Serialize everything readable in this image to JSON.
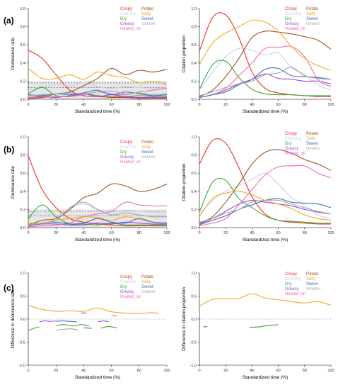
{
  "figure": {
    "panel_labels": [
      "(a)",
      "(b)",
      "(c)"
    ]
  },
  "legend_attributes": [
    {
      "name": "Crispy",
      "color": "#e8312a"
    },
    {
      "name": "Crunchy",
      "color": "#c6d2ea"
    },
    {
      "name": "Dry",
      "color": "#3aaa35"
    },
    {
      "name": "Greasy",
      "color": "#9b4fd6"
    },
    {
      "name": "Heated_oil",
      "color": "#f06ab8"
    },
    {
      "name": "Potato",
      "color": "#9a5520"
    },
    {
      "name": "Salty",
      "color": "#f5a623"
    },
    {
      "name": "Sweet",
      "color": "#3f6fc0"
    },
    {
      "name": "Umami",
      "color": "#a6a6a6"
    }
  ],
  "chart_data": [
    {
      "id": "a-left",
      "type": "line",
      "xlabel": "Standardized time (%)",
      "ylabel": "Dominance rate",
      "xlim": [
        0,
        100
      ],
      "ylim": [
        0,
        1.0
      ],
      "xticks": [
        "0",
        "20",
        "40",
        "60",
        "80",
        "100"
      ],
      "yticks": [
        "0.0",
        "0.2",
        "0.4",
        "0.6",
        "0.8",
        "1.0"
      ],
      "significance_lines": [
        0.13,
        0.18
      ],
      "x": [
        0,
        10,
        20,
        30,
        40,
        50,
        60,
        70,
        80,
        90,
        100
      ],
      "series": [
        {
          "name": "Crispy",
          "values": [
            0.54,
            0.45,
            0.27,
            0.1,
            0.04,
            0.03,
            0.02,
            0.02,
            0.01,
            0.01,
            0.01
          ]
        },
        {
          "name": "Crunchy",
          "values": [
            0.1,
            0.14,
            0.16,
            0.15,
            0.18,
            0.14,
            0.12,
            0.14,
            0.13,
            0.12,
            0.12
          ]
        },
        {
          "name": "Dry",
          "values": [
            0.06,
            0.13,
            0.04,
            0.03,
            0.06,
            0.04,
            0.03,
            0.03,
            0.04,
            0.03,
            0.03
          ]
        },
        {
          "name": "Greasy",
          "values": [
            0.02,
            0.03,
            0.02,
            0.04,
            0.06,
            0.03,
            0.05,
            0.03,
            0.02,
            0.02,
            0.02
          ]
        },
        {
          "name": "Heated_oil",
          "values": [
            0.02,
            0.02,
            0.03,
            0.03,
            0.05,
            0.08,
            0.06,
            0.05,
            0.08,
            0.1,
            0.12
          ]
        },
        {
          "name": "Potato",
          "values": [
            0.01,
            0.02,
            0.06,
            0.08,
            0.15,
            0.23,
            0.34,
            0.27,
            0.32,
            0.3,
            0.33
          ]
        },
        {
          "name": "Salty",
          "values": [
            0.34,
            0.23,
            0.23,
            0.27,
            0.22,
            0.3,
            0.26,
            0.24,
            0.18,
            0.2,
            0.16
          ]
        },
        {
          "name": "Sweet",
          "values": [
            0.05,
            0.04,
            0.06,
            0.05,
            0.07,
            0.1,
            0.05,
            0.08,
            0.06,
            0.04,
            0.05
          ]
        },
        {
          "name": "Umami",
          "values": [
            0.04,
            0.05,
            0.06,
            0.07,
            0.06,
            0.08,
            0.09,
            0.06,
            0.07,
            0.05,
            0.06
          ]
        }
      ]
    },
    {
      "id": "a-right",
      "type": "line",
      "xlabel": "Standardized time (%)",
      "ylabel": "Citation proportion",
      "xlim": [
        0,
        100
      ],
      "ylim": [
        0,
        1.0
      ],
      "xticks": [
        "0",
        "20",
        "40",
        "60",
        "80",
        "100"
      ],
      "yticks": [
        "0.0",
        "0.2",
        "0.4",
        "0.6",
        "0.8",
        "1.0"
      ],
      "x": [
        0,
        10,
        20,
        30,
        40,
        50,
        60,
        70,
        80,
        90,
        100
      ],
      "series": [
        {
          "name": "Crispy",
          "values": [
            0.53,
            0.9,
            0.93,
            0.68,
            0.3,
            0.12,
            0.07,
            0.05,
            0.04,
            0.03,
            0.03
          ]
        },
        {
          "name": "Crunchy",
          "values": [
            0.1,
            0.3,
            0.47,
            0.56,
            0.54,
            0.49,
            0.51,
            0.35,
            0.27,
            0.16,
            0.1
          ]
        },
        {
          "name": "Dry",
          "values": [
            0.11,
            0.38,
            0.42,
            0.24,
            0.11,
            0.06,
            0.05,
            0.05,
            0.04,
            0.04,
            0.04
          ]
        },
        {
          "name": "Greasy",
          "values": [
            0.02,
            0.05,
            0.1,
            0.17,
            0.22,
            0.28,
            0.23,
            0.22,
            0.2,
            0.2,
            0.17
          ]
        },
        {
          "name": "Heated_oil",
          "values": [
            0.02,
            0.05,
            0.12,
            0.26,
            0.4,
            0.56,
            0.57,
            0.58,
            0.47,
            0.22,
            0.14
          ]
        },
        {
          "name": "Potato",
          "values": [
            0.03,
            0.1,
            0.25,
            0.45,
            0.68,
            0.75,
            0.74,
            0.72,
            0.69,
            0.65,
            0.55
          ]
        },
        {
          "name": "Salty",
          "values": [
            0.38,
            0.62,
            0.73,
            0.8,
            0.87,
            0.85,
            0.75,
            0.58,
            0.45,
            0.37,
            0.32
          ]
        },
        {
          "name": "Sweet",
          "values": [
            0.02,
            0.05,
            0.08,
            0.16,
            0.22,
            0.33,
            0.34,
            0.26,
            0.25,
            0.24,
            0.22
          ]
        },
        {
          "name": "Umami",
          "values": [
            0.04,
            0.08,
            0.13,
            0.17,
            0.2,
            0.27,
            0.29,
            0.35,
            0.26,
            0.23,
            0.22
          ]
        }
      ]
    },
    {
      "id": "b-left",
      "type": "line",
      "xlabel": "Standardized time (%)",
      "ylabel": "Dominance rate",
      "xlim": [
        0,
        100
      ],
      "ylim": [
        0,
        1.0
      ],
      "xticks": [
        "0",
        "20",
        "40",
        "60",
        "80",
        "100"
      ],
      "yticks": [
        "0.0",
        "0.2",
        "0.4",
        "0.6",
        "0.8",
        "1.0"
      ],
      "significance_lines": [
        0.13,
        0.18
      ],
      "x": [
        0,
        10,
        20,
        30,
        40,
        50,
        60,
        70,
        80,
        90,
        100
      ],
      "series": [
        {
          "name": "Crispy",
          "values": [
            0.79,
            0.42,
            0.22,
            0.1,
            0.06,
            0.04,
            0.03,
            0.02,
            0.02,
            0.02,
            0.02
          ]
        },
        {
          "name": "Crunchy",
          "values": [
            0.1,
            0.18,
            0.12,
            0.22,
            0.26,
            0.2,
            0.17,
            0.19,
            0.18,
            0.17,
            0.16
          ]
        },
        {
          "name": "Dry",
          "values": [
            0.1,
            0.25,
            0.12,
            0.04,
            0.04,
            0.03,
            0.05,
            0.03,
            0.03,
            0.03,
            0.03
          ]
        },
        {
          "name": "Greasy",
          "values": [
            0.02,
            0.04,
            0.04,
            0.03,
            0.03,
            0.05,
            0.04,
            0.06,
            0.05,
            0.04,
            0.04
          ]
        },
        {
          "name": "Heated_oil",
          "values": [
            0.01,
            0.02,
            0.03,
            0.05,
            0.12,
            0.15,
            0.18,
            0.28,
            0.25,
            0.24,
            0.24
          ]
        },
        {
          "name": "Potato",
          "values": [
            0.03,
            0.08,
            0.1,
            0.2,
            0.33,
            0.38,
            0.48,
            0.46,
            0.4,
            0.42,
            0.48
          ]
        },
        {
          "name": "Salty",
          "values": [
            0.05,
            0.05,
            0.08,
            0.1,
            0.12,
            0.11,
            0.08,
            0.12,
            0.09,
            0.06,
            0.05
          ]
        },
        {
          "name": "Sweet",
          "values": [
            0.03,
            0.05,
            0.06,
            0.04,
            0.05,
            0.1,
            0.06,
            0.05,
            0.1,
            0.06,
            0.05
          ]
        },
        {
          "name": "Umami",
          "values": [
            0.03,
            0.05,
            0.08,
            0.22,
            0.28,
            0.2,
            0.14,
            0.16,
            0.14,
            0.12,
            0.12
          ]
        }
      ]
    },
    {
      "id": "b-right",
      "type": "line",
      "xlabel": "Standardized time (%)",
      "ylabel": "Citation proportion",
      "xlim": [
        0,
        100
      ],
      "ylim": [
        0,
        1.0
      ],
      "xticks": [
        "0",
        "20",
        "40",
        "60",
        "80",
        "100"
      ],
      "yticks": [
        "0.0",
        "0.2",
        "0.4",
        "0.6",
        "0.8",
        "1.0"
      ],
      "x": [
        0,
        10,
        20,
        30,
        40,
        50,
        60,
        70,
        80,
        90,
        100
      ],
      "series": [
        {
          "name": "Crispy",
          "values": [
            0.7,
            0.96,
            0.93,
            0.66,
            0.34,
            0.15,
            0.08,
            0.06,
            0.05,
            0.04,
            0.04
          ]
        },
        {
          "name": "Crunchy",
          "values": [
            0.15,
            0.3,
            0.4,
            0.46,
            0.53,
            0.6,
            0.48,
            0.33,
            0.25,
            0.14,
            0.1
          ]
        },
        {
          "name": "Dry",
          "values": [
            0.17,
            0.5,
            0.52,
            0.32,
            0.22,
            0.13,
            0.08,
            0.07,
            0.06,
            0.05,
            0.05
          ]
        },
        {
          "name": "Greasy",
          "values": [
            0.04,
            0.1,
            0.18,
            0.26,
            0.3,
            0.28,
            0.26,
            0.24,
            0.2,
            0.17,
            0.15
          ]
        },
        {
          "name": "Heated_oil",
          "values": [
            0.02,
            0.05,
            0.1,
            0.25,
            0.42,
            0.58,
            0.67,
            0.68,
            0.68,
            0.6,
            0.55
          ]
        },
        {
          "name": "Potato",
          "values": [
            0.05,
            0.12,
            0.28,
            0.48,
            0.7,
            0.83,
            0.86,
            0.82,
            0.75,
            0.7,
            0.63
          ]
        },
        {
          "name": "Salty",
          "values": [
            0.12,
            0.32,
            0.38,
            0.4,
            0.36,
            0.3,
            0.26,
            0.21,
            0.14,
            0.1,
            0.08
          ]
        },
        {
          "name": "Sweet",
          "values": [
            0.03,
            0.08,
            0.13,
            0.2,
            0.25,
            0.3,
            0.32,
            0.28,
            0.27,
            0.26,
            0.22
          ]
        },
        {
          "name": "Umami",
          "values": [
            0.06,
            0.1,
            0.16,
            0.2,
            0.28,
            0.3,
            0.3,
            0.26,
            0.22,
            0.18,
            0.15
          ]
        }
      ]
    },
    {
      "id": "c-left",
      "type": "line",
      "xlabel": "Standardized time (%)",
      "ylabel": "Difference in dominance rate",
      "xlim": [
        0,
        100
      ],
      "ylim": [
        -1.0,
        1.0
      ],
      "xticks": [
        "0",
        "20",
        "40",
        "60",
        "80",
        "100"
      ],
      "yticks": [
        "-1.0",
        "-0.5",
        "0.0",
        "0.5",
        "1.0"
      ],
      "zero_line": 0,
      "series": [
        {
          "name": "Salty",
          "x": [
            0,
            10,
            20,
            30,
            40,
            50,
            60,
            70,
            80,
            90,
            94
          ],
          "values": [
            0.3,
            0.21,
            0.17,
            0.18,
            0.17,
            0.24,
            0.16,
            0.13,
            0.12,
            0.14,
            0.11
          ]
        },
        {
          "name": "Greasy",
          "x": [
            38,
            40,
            42
          ],
          "values": [
            0.12,
            0.14,
            0.12
          ]
        },
        {
          "name": "Heated_oil",
          "x": [
            60,
            62,
            64
          ],
          "values": [
            0.06,
            0.08,
            0.06
          ]
        },
        {
          "name": "Greasy",
          "x": [
            8,
            12,
            16,
            20
          ],
          "values": [
            -0.06,
            -0.04,
            -0.05,
            -0.04
          ]
        },
        {
          "name": "Sweet",
          "x": [
            20,
            25,
            30,
            35
          ],
          "values": [
            -0.05,
            -0.04,
            -0.05,
            -0.06
          ]
        },
        {
          "name": "Greasy",
          "x": [
            50,
            54,
            58
          ],
          "values": [
            -0.06,
            -0.04,
            -0.06
          ]
        },
        {
          "name": "Dry",
          "x": [
            0,
            4,
            8
          ],
          "values": [
            -0.25,
            -0.2,
            -0.17
          ]
        },
        {
          "name": "Dry",
          "x": [
            20,
            26,
            32,
            38,
            44
          ],
          "values": [
            -0.14,
            -0.12,
            -0.15,
            -0.12,
            -0.14
          ]
        },
        {
          "name": "Dry",
          "x": [
            52,
            58,
            64
          ],
          "values": [
            -0.2,
            -0.16,
            -0.19
          ]
        },
        {
          "name": "Umami",
          "x": [
            20,
            30,
            36
          ],
          "values": [
            -0.24,
            -0.21,
            -0.24
          ]
        },
        {
          "name": "Sweet",
          "x": [
            40,
            46
          ],
          "values": [
            -0.19,
            -0.2
          ]
        }
      ]
    },
    {
      "id": "c-right",
      "type": "line",
      "xlabel": "Standardized time (%)",
      "ylabel": "Difference in citation proportion",
      "xlim": [
        0,
        100
      ],
      "ylim": [
        -1.0,
        1.0
      ],
      "xticks": [
        "0",
        "20",
        "40",
        "60",
        "80",
        "100"
      ],
      "yticks": [
        "-1.0",
        "-0.5",
        "0.0",
        "0.5",
        "1.0"
      ],
      "zero_line": 0,
      "series": [
        {
          "name": "Salty",
          "x": [
            0,
            10,
            20,
            30,
            40,
            50,
            60,
            70,
            80,
            90,
            100
          ],
          "values": [
            0.28,
            0.43,
            0.44,
            0.45,
            0.55,
            0.46,
            0.42,
            0.38,
            0.35,
            0.38,
            0.3
          ]
        },
        {
          "name": "Dry",
          "x": [
            38,
            45,
            52,
            60
          ],
          "values": [
            -0.18,
            -0.17,
            -0.14,
            -0.12
          ]
        },
        {
          "name": "Greasy",
          "x": [
            3,
            6
          ],
          "values": [
            -0.17,
            -0.16
          ]
        }
      ]
    }
  ]
}
